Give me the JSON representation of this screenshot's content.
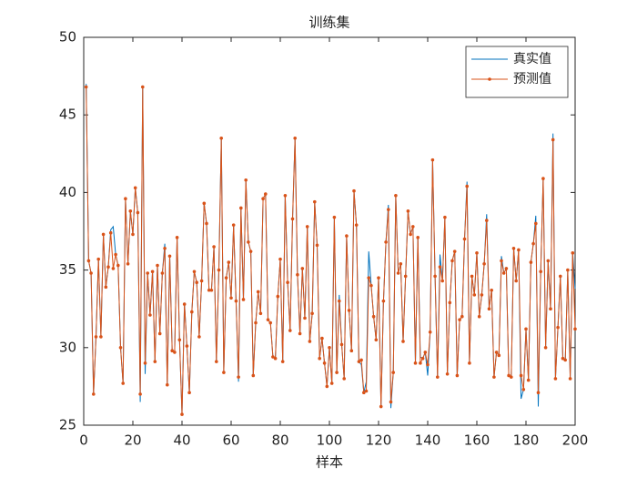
{
  "chart_data": {
    "type": "line",
    "title": "训练集",
    "xlabel": "样本",
    "x": [
      1,
      2,
      3,
      4,
      5,
      6,
      7,
      8,
      9,
      10,
      11,
      12,
      13,
      14,
      15,
      16,
      17,
      18,
      19,
      20,
      21,
      22,
      23,
      24,
      25,
      26,
      27,
      28,
      29,
      30,
      31,
      32,
      33,
      34,
      35,
      36,
      37,
      38,
      39,
      40,
      41,
      42,
      43,
      44,
      45,
      46,
      47,
      48,
      49,
      50,
      51,
      52,
      53,
      54,
      55,
      56,
      57,
      58,
      59,
      60,
      61,
      62,
      63,
      64,
      65,
      66,
      67,
      68,
      69,
      70,
      71,
      72,
      73,
      74,
      75,
      76,
      77,
      78,
      79,
      80,
      81,
      82,
      83,
      84,
      85,
      86,
      87,
      88,
      89,
      90,
      91,
      92,
      93,
      94,
      95,
      96,
      97,
      98,
      99,
      100,
      101,
      102,
      103,
      104,
      105,
      106,
      107,
      108,
      109,
      110,
      111,
      112,
      113,
      114,
      115,
      116,
      117,
      118,
      119,
      120,
      121,
      122,
      123,
      124,
      125,
      126,
      127,
      128,
      129,
      130,
      131,
      132,
      133,
      134,
      135,
      136,
      137,
      138,
      139,
      140,
      141,
      142,
      143,
      144,
      145,
      146,
      147,
      148,
      149,
      150,
      151,
      152,
      153,
      154,
      155,
      156,
      157,
      158,
      159,
      160,
      161,
      162,
      163,
      164,
      165,
      166,
      167,
      168,
      169,
      170,
      171,
      172,
      173,
      174,
      175,
      176,
      177,
      178,
      179,
      180,
      181,
      182,
      183,
      184,
      185,
      186,
      187,
      188,
      189,
      190,
      191,
      192,
      193,
      194,
      195,
      196,
      197,
      198,
      199,
      200
    ],
    "series": [
      {
        "name": "真实值",
        "color": "#0072bd",
        "values": [
          47.0,
          35.6,
          34.8,
          27.0,
          30.7,
          35.7,
          30.7,
          37.3,
          33.9,
          35.2,
          37.6,
          37.8,
          36.0,
          35.3,
          30.0,
          27.7,
          39.6,
          35.4,
          38.8,
          37.3,
          40.3,
          38.7,
          26.5,
          46.9,
          28.3,
          34.8,
          32.1,
          34.9,
          29.1,
          35.3,
          30.9,
          34.8,
          36.7,
          27.6,
          35.9,
          29.8,
          29.7,
          37.1,
          30.5,
          25.7,
          32.9,
          30.1,
          27.1,
          32.3,
          34.9,
          34.2,
          30.7,
          34.3,
          39.3,
          38.0,
          33.7,
          33.7,
          36.5,
          29.1,
          35.0,
          43.5,
          28.4,
          34.5,
          35.5,
          33.2,
          37.9,
          33.0,
          27.8,
          39.0,
          33.1,
          40.8,
          36.8,
          36.2,
          28.2,
          31.6,
          33.6,
          32.2,
          39.6,
          39.9,
          31.8,
          31.6,
          29.4,
          29.3,
          33.3,
          35.7,
          29.1,
          39.8,
          34.2,
          31.1,
          38.3,
          43.5,
          34.7,
          30.9,
          35.1,
          31.9,
          37.8,
          30.4,
          32.2,
          39.4,
          36.6,
          29.3,
          30.6,
          29.0,
          27.5,
          30.0,
          27.7,
          38.4,
          28.4,
          33.4,
          30.2,
          28.0,
          37.2,
          32.4,
          29.8,
          40.1,
          37.9,
          29.1,
          28.9,
          27.1,
          27.8,
          36.2,
          34.0,
          32.0,
          30.5,
          34.5,
          26.2,
          33.0,
          36.8,
          39.2,
          26.1,
          28.4,
          39.8,
          34.8,
          35.4,
          30.4,
          34.6,
          38.8,
          37.3,
          37.8,
          29.0,
          37.1,
          29.4,
          29.3,
          29.7,
          28.2,
          31.0,
          42.1,
          34.6,
          28.1,
          36.0,
          34.3,
          38.4,
          28.3,
          32.9,
          35.6,
          36.2,
          28.2,
          31.8,
          32.0,
          37.0,
          40.7,
          29.0,
          34.6,
          33.4,
          36.1,
          32.0,
          33.4,
          35.4,
          38.6,
          32.5,
          33.7,
          28.1,
          29.7,
          29.5,
          35.9,
          34.8,
          35.1,
          28.2,
          28.1,
          36.4,
          34.3,
          36.3,
          26.7,
          27.3,
          31.2,
          27.9,
          35.5,
          36.7,
          38.5,
          26.2,
          34.9,
          40.9,
          30.0,
          35.6,
          32.5,
          43.8,
          28.0,
          31.3,
          34.6,
          29.3,
          29.2,
          35.0,
          28.0,
          36.1,
          33.8
        ]
      },
      {
        "name": "预测值",
        "color": "#d95319",
        "marker": "o",
        "values": [
          46.8,
          35.6,
          34.8,
          27.0,
          30.7,
          35.7,
          30.7,
          37.3,
          33.9,
          35.2,
          37.4,
          35.1,
          36.0,
          35.3,
          30.0,
          27.7,
          39.6,
          35.4,
          38.8,
          37.3,
          40.3,
          38.7,
          27.0,
          46.8,
          29.0,
          34.8,
          32.1,
          34.9,
          29.1,
          35.3,
          30.9,
          34.8,
          36.4,
          27.6,
          35.9,
          29.8,
          29.7,
          37.1,
          30.5,
          25.7,
          32.8,
          30.1,
          27.1,
          32.3,
          34.9,
          34.2,
          30.7,
          34.3,
          39.3,
          38.0,
          33.7,
          33.7,
          36.5,
          29.1,
          35.0,
          43.5,
          28.4,
          34.5,
          35.5,
          33.2,
          37.9,
          33.0,
          28.1,
          39.0,
          33.1,
          40.8,
          36.8,
          36.2,
          28.2,
          31.6,
          33.6,
          32.2,
          39.6,
          39.9,
          31.8,
          31.6,
          29.4,
          29.3,
          33.3,
          35.7,
          29.1,
          39.8,
          34.2,
          31.1,
          38.3,
          43.5,
          34.7,
          30.9,
          35.1,
          31.9,
          37.8,
          30.4,
          32.2,
          39.4,
          36.6,
          29.3,
          30.6,
          29.0,
          27.5,
          30.0,
          27.7,
          38.4,
          28.4,
          33.0,
          30.2,
          28.0,
          37.2,
          32.4,
          29.8,
          40.1,
          37.9,
          29.1,
          29.2,
          27.1,
          27.2,
          34.5,
          34.0,
          32.0,
          30.5,
          34.5,
          26.2,
          33.0,
          36.8,
          38.9,
          26.5,
          28.4,
          39.8,
          34.8,
          35.4,
          30.4,
          34.6,
          38.8,
          37.3,
          37.8,
          29.0,
          37.1,
          29.0,
          29.3,
          29.7,
          28.9,
          31.0,
          42.1,
          34.6,
          28.1,
          35.2,
          34.3,
          38.4,
          28.3,
          32.9,
          35.6,
          36.2,
          28.2,
          31.8,
          32.0,
          37.0,
          40.4,
          29.0,
          34.6,
          33.4,
          36.1,
          32.0,
          33.4,
          35.4,
          38.2,
          32.5,
          33.7,
          28.1,
          29.7,
          29.5,
          35.6,
          34.8,
          35.1,
          28.2,
          28.1,
          36.4,
          34.3,
          36.3,
          28.2,
          27.3,
          31.2,
          27.9,
          35.5,
          36.7,
          38.0,
          27.1,
          34.9,
          40.9,
          30.0,
          35.6,
          32.5,
          43.4,
          28.0,
          31.3,
          34.6,
          29.3,
          29.2,
          35.0,
          28.0,
          36.1,
          31.2
        ]
      }
    ],
    "xlim": [
      0,
      200
    ],
    "xticks": [
      0,
      20,
      40,
      60,
      80,
      100,
      120,
      140,
      160,
      180,
      200
    ],
    "ylim": [
      25,
      50
    ],
    "yticks": [
      25,
      30,
      35,
      40,
      45,
      50
    ],
    "legend": "upper right"
  }
}
